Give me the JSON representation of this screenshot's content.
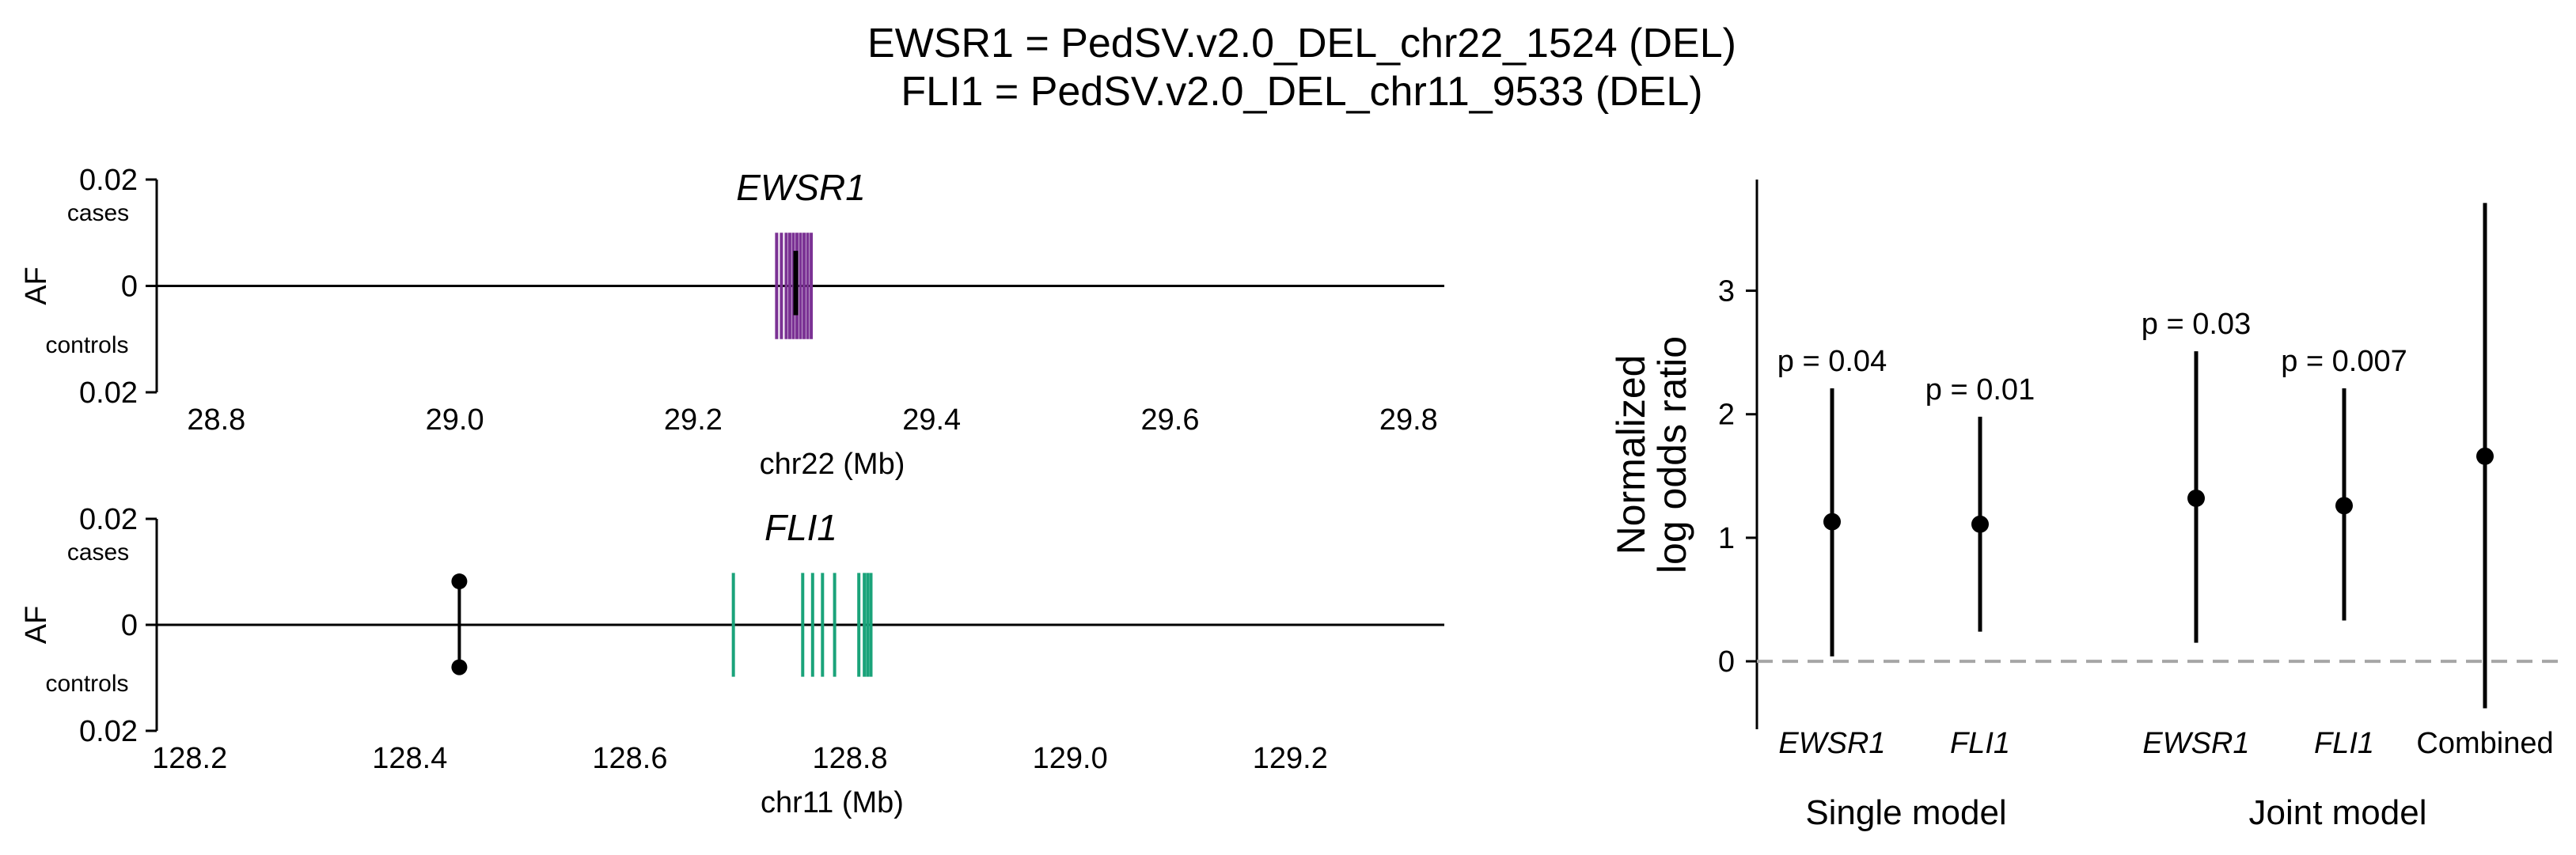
{
  "title": {
    "line1": "EWSR1 = PedSV.v2.0_DEL_chr22_1524 (DEL)",
    "line2": "FLI1 = PedSV.v2.0_DEL_chr11_9533 (DEL)"
  },
  "chart_data": [
    {
      "type": "scatter",
      "panel": "EWSR1 locus",
      "gene_label": "EWSR1",
      "xlabel": "chr22 (Mb)",
      "ylabel": "AF",
      "xlim": [
        28.75,
        29.83
      ],
      "ylim": [
        -0.02,
        0.02
      ],
      "x_ticks": [
        "28.8",
        "29.0",
        "29.2",
        "29.4",
        "29.6",
        "29.8"
      ],
      "y_ticks": [
        "0.02",
        "0",
        "0.02"
      ],
      "y_tick_values": [
        0.02,
        0,
        -0.02
      ],
      "cases_label": "cases",
      "controls_label": "controls",
      "gene_color": "#7B3294",
      "gene_exons_mb": [
        29.27,
        29.274,
        29.278,
        29.281,
        29.284,
        29.287,
        29.29,
        29.293,
        29.296,
        29.299
      ],
      "gene_exon_height_af": 0.01,
      "variant": {
        "x_mb": 29.286,
        "case_af": 0.0066,
        "control_af": -0.0055
      }
    },
    {
      "type": "scatter",
      "panel": "FLI1 locus",
      "gene_label": "FLI1",
      "xlabel": "chr11 (Mb)",
      "ylabel": "AF",
      "xlim": [
        128.17,
        129.34
      ],
      "ylim": [
        -0.02,
        0.02
      ],
      "x_ticks": [
        "128.2",
        "128.4",
        "128.6",
        "128.8",
        "129.0",
        "129.2"
      ],
      "y_ticks": [
        "0.02",
        "0",
        "0.02"
      ],
      "y_tick_values": [
        0.02,
        0,
        -0.02
      ],
      "cases_label": "cases",
      "controls_label": "controls",
      "gene_color": "#1AA37A",
      "gene_exons_mb": [
        128.694,
        128.757,
        128.766,
        128.775,
        128.786,
        128.808,
        128.813,
        128.816,
        128.819
      ],
      "gene_exon_height_af": 0.0098,
      "variant": {
        "x_mb": 128.445,
        "case_af": 0.0082,
        "control_af": -0.008
      }
    },
    {
      "type": "scatter",
      "panel": "odds ratios",
      "ylabel_line1": "Normalized",
      "ylabel_line2": "log odds ratio",
      "ylim": [
        -0.55,
        3.9
      ],
      "y_ticks": [
        0,
        1,
        2,
        3
      ],
      "reference_line": 0,
      "categories": [
        "EWSR1",
        "FLI1",
        "EWSR1",
        "FLI1",
        "Combined"
      ],
      "category_italic": [
        true,
        true,
        true,
        true,
        false
      ],
      "groups": [
        {
          "name": "Single model",
          "indices": [
            0,
            1
          ]
        },
        {
          "name": "Joint model",
          "indices": [
            2,
            3,
            4
          ]
        }
      ],
      "points": [
        {
          "estimate": 1.13,
          "ci": [
            0.04,
            2.21
          ],
          "p_label": "p = 0.04"
        },
        {
          "estimate": 1.11,
          "ci": [
            0.24,
            1.98
          ],
          "p_label": "p = 0.01"
        },
        {
          "estimate": 1.32,
          "ci": [
            0.15,
            2.51
          ],
          "p_label": "p = 0.03"
        },
        {
          "estimate": 1.26,
          "ci": [
            0.33,
            2.21
          ],
          "p_label": "p = 0.007"
        },
        {
          "estimate": 1.66,
          "ci": [
            -0.38,
            3.71
          ],
          "p_label": ""
        }
      ]
    }
  ]
}
